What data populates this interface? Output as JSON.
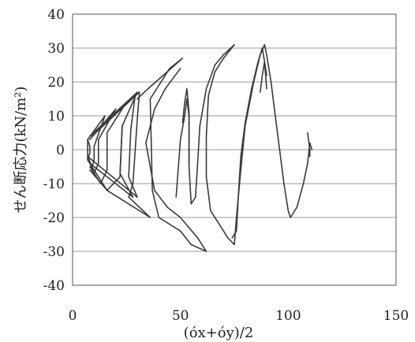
{
  "chart_data": {
    "type": "line",
    "title": "",
    "xlabel": "(óx+óy)/2",
    "ylabel": "せん断応力(kN/m²)",
    "xlim": [
      0,
      150
    ],
    "ylim": [
      -40,
      40
    ],
    "x_ticks": [
      "0",
      "50",
      "100",
      "150"
    ],
    "y_ticks": [
      "-40",
      "-30",
      "-20",
      "-10",
      "0",
      "10",
      "20",
      "30",
      "40"
    ],
    "grid": "horizontal",
    "legend": "none",
    "series": [
      {
        "points": [
          [
            7,
            3
          ],
          [
            7,
            -3
          ],
          [
            8,
            -1
          ],
          [
            8,
            1
          ],
          [
            7,
            3
          ]
        ]
      },
      {
        "points": [
          [
            7,
            3
          ],
          [
            15,
            10
          ],
          [
            10,
            1
          ],
          [
            10,
            -3
          ],
          [
            9,
            -5
          ],
          [
            7,
            -2
          ]
        ]
      },
      {
        "points": [
          [
            8,
            3
          ],
          [
            20,
            12
          ],
          [
            12,
            3
          ],
          [
            12,
            -4
          ],
          [
            10,
            -7
          ],
          [
            8,
            -4
          ]
        ]
      },
      {
        "points": [
          [
            8,
            4
          ],
          [
            25,
            14
          ],
          [
            16,
            5
          ],
          [
            16,
            -6
          ],
          [
            13,
            -10
          ],
          [
            8,
            -5
          ]
        ]
      },
      {
        "points": [
          [
            8,
            4
          ],
          [
            30,
            17
          ],
          [
            23,
            7
          ],
          [
            22,
            -8
          ],
          [
            16,
            -12
          ],
          [
            8,
            -6
          ]
        ]
      },
      {
        "points": [
          [
            23,
            7
          ],
          [
            22,
            -7
          ],
          [
            28,
            -14
          ],
          [
            8,
            -4
          ]
        ]
      },
      {
        "points": [
          [
            9,
            4
          ],
          [
            29,
            16
          ],
          [
            27,
            6
          ],
          [
            26,
            -8
          ],
          [
            30,
            -14
          ],
          [
            7,
            -2
          ]
        ]
      },
      {
        "points": [
          [
            9,
            4
          ],
          [
            31,
            17
          ],
          [
            30,
            9
          ],
          [
            28,
            -10
          ],
          [
            26,
            -14
          ],
          [
            36,
            -20
          ],
          [
            16,
            -12
          ],
          [
            7,
            -3
          ]
        ]
      },
      {
        "points": [
          [
            30,
            15
          ],
          [
            35,
            18
          ],
          [
            51,
            27
          ],
          [
            45,
            24
          ],
          [
            36,
            15
          ],
          [
            37,
            -12
          ],
          [
            40,
            -20
          ],
          [
            50,
            -24
          ],
          [
            55,
            -28
          ],
          [
            62,
            -30
          ],
          [
            58,
            -26
          ],
          [
            50,
            -20
          ],
          [
            44,
            -17
          ],
          [
            38,
            -12
          ]
        ]
      },
      {
        "points": [
          [
            38,
            -12
          ],
          [
            34,
            2
          ],
          [
            38,
            12
          ],
          [
            43,
            18
          ],
          [
            50,
            24
          ]
        ]
      },
      {
        "points": [
          [
            51,
            8
          ],
          [
            52,
            14
          ],
          [
            53,
            18
          ],
          [
            54,
            11
          ],
          [
            54,
            -5
          ],
          [
            55,
            -16
          ],
          [
            57,
            -14
          ]
        ]
      },
      {
        "points": [
          [
            48,
            -14
          ],
          [
            50,
            3
          ],
          [
            52,
            10
          ],
          [
            53,
            15
          ],
          [
            54,
            10
          ],
          [
            54,
            -4
          ]
        ]
      },
      {
        "points": [
          [
            57,
            -14
          ],
          [
            58,
            -4
          ],
          [
            59,
            7
          ],
          [
            62,
            18
          ],
          [
            66,
            25
          ],
          [
            70,
            28
          ],
          [
            75,
            31
          ],
          [
            70,
            27
          ],
          [
            66,
            23
          ],
          [
            63,
            16
          ],
          [
            62,
            4
          ],
          [
            62,
            -8
          ]
        ]
      },
      {
        "points": [
          [
            62,
            -8
          ],
          [
            64,
            -18
          ],
          [
            68,
            -22
          ],
          [
            72,
            -26
          ],
          [
            75,
            -28
          ],
          [
            76,
            -20
          ],
          [
            78,
            -6
          ],
          [
            80,
            7
          ],
          [
            84,
            20
          ],
          [
            87,
            28
          ],
          [
            89,
            31
          ],
          [
            90,
            28
          ],
          [
            92,
            20
          ],
          [
            94,
            10
          ]
        ]
      },
      {
        "points": [
          [
            74,
            -26
          ],
          [
            76,
            -24
          ],
          [
            77,
            -12
          ],
          [
            78,
            -2
          ],
          [
            80,
            8
          ],
          [
            83,
            18
          ],
          [
            86,
            26
          ],
          [
            88,
            30
          ],
          [
            89,
            26
          ],
          [
            90,
            18
          ]
        ]
      },
      {
        "points": [
          [
            94,
            10
          ],
          [
            96,
            0
          ],
          [
            98,
            -10
          ],
          [
            100,
            -18
          ],
          [
            101,
            -20
          ],
          [
            104,
            -17
          ],
          [
            107,
            -10
          ],
          [
            109,
            -4
          ],
          [
            110,
            2
          ],
          [
            111,
            0
          ]
        ]
      },
      {
        "points": [
          [
            87,
            17
          ],
          [
            88,
            22
          ],
          [
            89,
            26
          ],
          [
            90,
            22
          ]
        ]
      },
      {
        "points": [
          [
            109,
            5
          ],
          [
            110,
            0
          ],
          [
            110,
            -2
          ]
        ]
      }
    ]
  }
}
